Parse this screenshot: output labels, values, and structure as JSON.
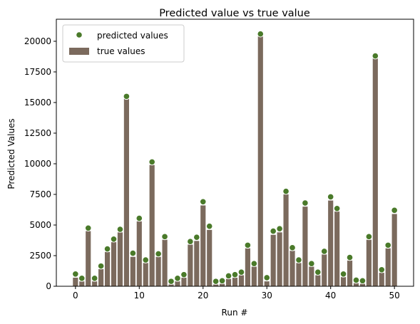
{
  "chart_data": {
    "type": "bar",
    "title": "Predicted value vs true value",
    "xlabel": "Run #",
    "ylabel": "Predicted Values",
    "xlim": [
      -3.0,
      53.0
    ],
    "ylim": [
      0,
      21800
    ],
    "x_ticks": [
      0,
      10,
      20,
      30,
      40,
      50
    ],
    "y_ticks": [
      0,
      2500,
      5000,
      7500,
      10000,
      12500,
      15000,
      17500,
      20000
    ],
    "legend_position": "top-left",
    "grid": false,
    "x": [
      0,
      1,
      2,
      3,
      4,
      5,
      6,
      7,
      8,
      9,
      10,
      11,
      12,
      13,
      14,
      15,
      16,
      17,
      18,
      19,
      20,
      21,
      22,
      23,
      24,
      25,
      26,
      27,
      28,
      29,
      30,
      31,
      32,
      33,
      34,
      35,
      36,
      37,
      38,
      39,
      40,
      41,
      42,
      43,
      44,
      45,
      46,
      47,
      48,
      49,
      50
    ],
    "series": [
      {
        "name": "true values",
        "kind": "bar",
        "color": "#7b6a5d",
        "values": [
          700,
          400,
          4500,
          400,
          1400,
          2800,
          3600,
          4400,
          15300,
          2400,
          5300,
          1900,
          9900,
          2400,
          3800,
          150,
          400,
          700,
          3400,
          3700,
          6600,
          4600,
          150,
          200,
          600,
          700,
          900,
          3100,
          1600,
          20400,
          400,
          4200,
          4400,
          7500,
          2900,
          1900,
          6500,
          1600,
          900,
          2600,
          7000,
          6100,
          750,
          2100,
          250,
          200,
          3800,
          18600,
          1100,
          3100,
          5900
        ]
      },
      {
        "name": "predicted values",
        "kind": "scatter",
        "color": "#4a7a2a",
        "values": [
          1000,
          650,
          4750,
          650,
          1650,
          3050,
          3850,
          4650,
          15500,
          2700,
          5550,
          2150,
          10150,
          2650,
          4050,
          400,
          650,
          950,
          3650,
          4000,
          6900,
          4900,
          400,
          450,
          850,
          950,
          1150,
          3350,
          1850,
          20600,
          700,
          4500,
          4700,
          7750,
          3150,
          2150,
          6800,
          1850,
          1150,
          2850,
          7300,
          6350,
          1000,
          2350,
          500,
          450,
          4050,
          18800,
          1350,
          3350,
          6200
        ]
      }
    ]
  }
}
